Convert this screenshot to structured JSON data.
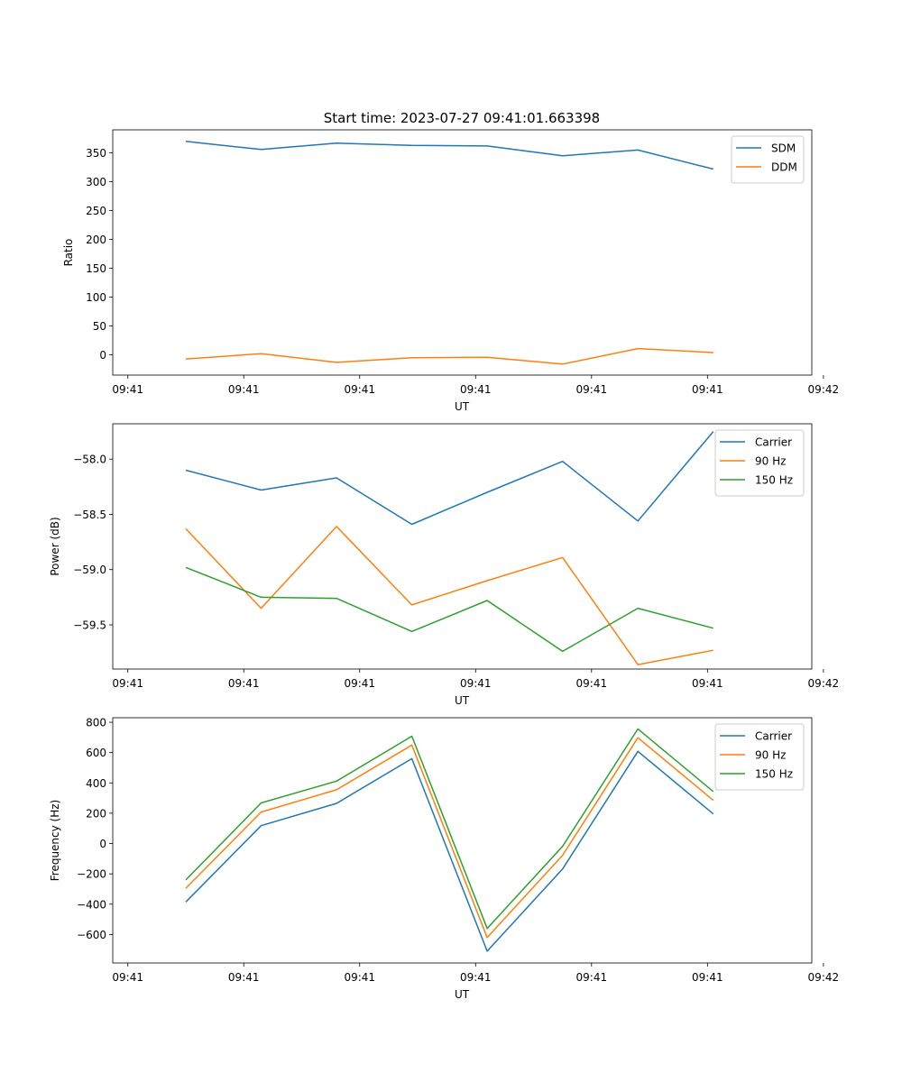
{
  "title": "Start time: 2023-07-27 09:41:01.663398",
  "colors": {
    "blue": "#1f77b4",
    "orange": "#ff7f0e",
    "green": "#2ca02c"
  },
  "chart_data": [
    {
      "type": "line",
      "title": "Start time: 2023-07-27 09:41:01.663398",
      "xlabel": "UT",
      "ylabel": "Ratio",
      "x_tick_labels": [
        "09:41",
        "09:41",
        "09:41",
        "09:41",
        "09:41",
        "09:41",
        "09:41"
      ],
      "last_x_tick_label": "09:42",
      "x": [
        0.5,
        1.15,
        1.8,
        2.45,
        3.1,
        3.75,
        4.4,
        5.05
      ],
      "xlim": [
        -0.13,
        5.9
      ],
      "ylim": [
        -35,
        390
      ],
      "y_ticks": [
        0,
        50,
        100,
        150,
        200,
        250,
        300,
        350
      ],
      "legend_position": "top-right",
      "series": [
        {
          "name": "SDM",
          "color": "#1f77b4",
          "values": [
            370,
            356,
            367,
            363,
            362,
            345,
            355,
            322
          ]
        },
        {
          "name": "DDM",
          "color": "#ff7f0e",
          "values": [
            -7,
            2,
            -13,
            -5,
            -4,
            -16,
            11,
            4
          ]
        }
      ]
    },
    {
      "type": "line",
      "xlabel": "UT",
      "ylabel": "Power (dB)",
      "x_tick_labels": [
        "09:41",
        "09:41",
        "09:41",
        "09:41",
        "09:41",
        "09:41",
        "09:41"
      ],
      "last_x_tick_label": "09:42",
      "x": [
        0.5,
        1.15,
        1.8,
        2.45,
        3.1,
        3.75,
        4.4,
        5.05
      ],
      "xlim": [
        -0.13,
        5.9
      ],
      "ylim": [
        -59.9,
        -57.68
      ],
      "y_ticks": [
        -59.5,
        -59.0,
        -58.5,
        -58.0
      ],
      "y_tick_labels": [
        "−59.5",
        "−59.0",
        "−58.5",
        "−58.0"
      ],
      "legend_position": "top-right",
      "series": [
        {
          "name": "Carrier",
          "color": "#1f77b4",
          "values": [
            -58.1,
            -58.28,
            -58.17,
            -58.59,
            -58.3,
            -58.02,
            -58.56,
            -57.75
          ]
        },
        {
          "name": "90 Hz",
          "color": "#ff7f0e",
          "values": [
            -58.63,
            -59.35,
            -58.61,
            -59.32,
            -59.1,
            -58.89,
            -59.86,
            -59.73
          ]
        },
        {
          "name": "150 Hz",
          "color": "#2ca02c",
          "values": [
            -58.98,
            -59.25,
            -59.26,
            -59.56,
            -59.28,
            -59.74,
            -59.35,
            -59.53
          ]
        }
      ]
    },
    {
      "type": "line",
      "xlabel": "UT",
      "ylabel": "Frequency (Hz)",
      "x_tick_labels": [
        "09:41",
        "09:41",
        "09:41",
        "09:41",
        "09:41",
        "09:41",
        "09:41"
      ],
      "last_x_tick_label": "09:42",
      "x": [
        0.5,
        1.15,
        1.8,
        2.45,
        3.1,
        3.75,
        4.4,
        5.05
      ],
      "xlim": [
        -0.13,
        5.9
      ],
      "ylim": [
        -788,
        830
      ],
      "y_ticks": [
        -600,
        -400,
        -200,
        0,
        200,
        400,
        600,
        800
      ],
      "y_tick_labels": [
        "−600",
        "−400",
        "−200",
        "0",
        "200",
        "400",
        "600",
        "800"
      ],
      "legend_position": "top-right",
      "series": [
        {
          "name": "Carrier",
          "color": "#1f77b4",
          "values": [
            -385,
            118,
            265,
            560,
            -710,
            -168,
            608,
            195
          ]
        },
        {
          "name": "90 Hz",
          "color": "#ff7f0e",
          "values": [
            -295,
            208,
            355,
            650,
            -620,
            -78,
            698,
            285
          ]
        },
        {
          "name": "150 Hz",
          "color": "#2ca02c",
          "values": [
            -240,
            268,
            412,
            708,
            -560,
            -18,
            756,
            343
          ]
        }
      ]
    }
  ]
}
